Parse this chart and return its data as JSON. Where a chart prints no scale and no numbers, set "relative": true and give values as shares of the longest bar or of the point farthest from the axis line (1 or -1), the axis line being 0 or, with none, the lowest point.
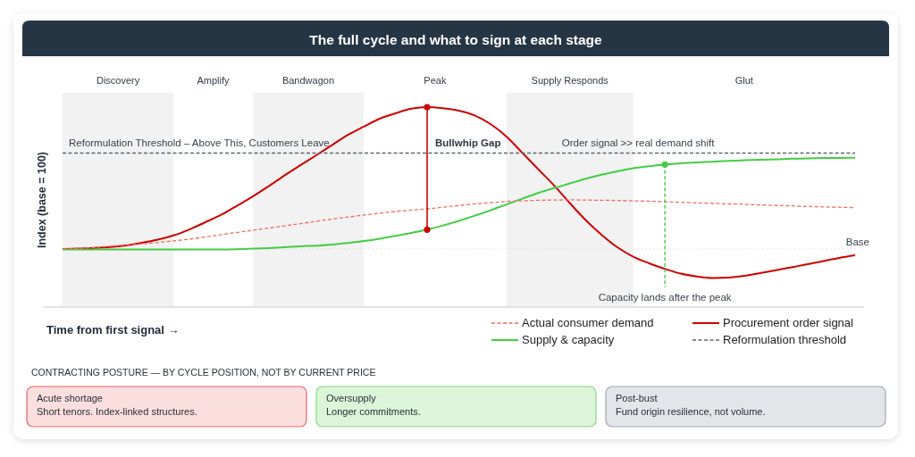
{
  "chart_data": [
    {
      "type": "line",
      "title": "The full cycle and what to sign at each stage",
      "xlabel": "Time from first signal →",
      "ylabel": "Index (base = 100)",
      "relative": true,
      "legend": "bottom right",
      "categories": [
        null,
        null,
        null,
        null,
        null,
        null,
        null,
        null,
        null,
        null,
        null,
        null,
        null,
        null,
        null,
        null,
        null,
        null,
        null,
        null,
        null,
        null,
        null,
        null,
        null,
        null,
        null,
        null,
        null,
        null,
        null,
        null,
        null,
        null,
        null,
        null,
        null,
        null,
        null,
        null,
        null,
        null,
        null,
        null,
        null,
        null,
        null,
        null,
        null,
        null,
        null
      ],
      "series": [
        {
          "name": "Actual consumer demand",
          "color": "#f26b5b",
          "line_style": "dashed",
          "values": [
            0.29,
            0.293,
            0.298,
            0.304,
            0.31,
            0.316,
            0.323,
            0.331,
            0.34,
            0.35,
            0.362,
            0.373,
            0.384,
            0.395,
            0.406,
            0.417,
            0.429,
            0.44,
            0.45,
            0.46,
            0.469,
            0.478,
            0.485,
            0.491,
            0.499,
            0.508,
            0.516,
            0.522,
            0.528,
            0.531,
            0.534,
            0.535,
            0.536,
            0.535,
            0.534,
            0.533,
            0.531,
            0.529,
            0.527,
            0.524,
            0.521,
            0.519,
            0.516,
            0.514,
            0.511,
            0.508,
            0.506,
            0.503,
            0.501,
            0.499,
            0.497
          ]
        },
        {
          "name": "Procurement order signal",
          "color": "#cc0000",
          "line_style": "solid",
          "values": [
            0.29,
            0.292,
            0.296,
            0.3,
            0.308,
            0.321,
            0.337,
            0.358,
            0.388,
            0.424,
            0.461,
            0.506,
            0.553,
            0.604,
            0.658,
            0.709,
            0.759,
            0.81,
            0.861,
            0.902,
            0.942,
            0.969,
            0.992,
            1.0,
            0.994,
            0.982,
            0.958,
            0.915,
            0.853,
            0.772,
            0.69,
            0.609,
            0.52,
            0.435,
            0.362,
            0.299,
            0.252,
            0.219,
            0.191,
            0.167,
            0.153,
            0.145,
            0.147,
            0.156,
            0.17,
            0.184,
            0.199,
            0.214,
            0.23,
            0.246,
            0.259
          ]
        },
        {
          "name": "Supply & capacity",
          "color": "#44cc44",
          "line_style": "solid",
          "values": [
            0.288,
            0.288,
            0.288,
            0.288,
            0.288,
            0.288,
            0.288,
            0.288,
            0.288,
            0.288,
            0.288,
            0.289,
            0.292,
            0.295,
            0.299,
            0.304,
            0.307,
            0.313,
            0.32,
            0.33,
            0.342,
            0.356,
            0.371,
            0.387,
            0.408,
            0.431,
            0.457,
            0.484,
            0.513,
            0.542,
            0.57,
            0.595,
            0.618,
            0.642,
            0.662,
            0.679,
            0.694,
            0.704,
            0.713,
            0.719,
            0.723,
            0.727,
            0.731,
            0.734,
            0.737,
            0.739,
            0.742,
            0.743,
            0.745,
            0.746,
            0.747
          ]
        },
        {
          "name": "Reformulation threshold",
          "color": "#5f6673",
          "line_style": "dashed",
          "values": [
            0.77,
            0.77,
            0.77,
            0.77,
            0.77,
            0.77,
            0.77,
            0.77,
            0.77,
            0.77,
            0.77,
            0.77,
            0.77,
            0.77,
            0.77,
            0.77,
            0.77,
            0.77,
            0.77,
            0.77,
            0.77,
            0.77,
            0.77,
            0.77,
            0.77,
            0.77,
            0.77,
            0.77,
            0.77,
            0.77,
            0.77,
            0.77,
            0.77,
            0.77,
            0.77,
            0.77,
            0.77,
            0.77,
            0.77,
            0.77,
            0.77,
            0.77,
            0.77,
            0.77,
            0.77,
            0.77,
            0.77,
            0.77,
            0.77,
            0.77,
            0.77
          ]
        }
      ],
      "ref_lines": [
        {
          "axis": "y",
          "value": 0.29,
          "label": "Base",
          "color": "#dcdcdc",
          "line_style": "dotted"
        }
      ],
      "annotations": [
        "Discovery",
        "Amplify",
        "Bandwagon",
        "Peak",
        "Supply Responds",
        "Glut",
        {
          "text": "Reformulation Threshold – Above This, Customers Leave",
          "y": 0.77
        },
        "Bullwhip Gap",
        {
          "text": "Order signal >> real demand shift",
          "y": 0.77
        },
        "Capacity lands after the peak"
      ]
    },
    {
      "type": "other",
      "title": "CONTRACTING POSTURE — BY CYCLE POSITION, NOT BY CURRENT PRICE",
      "annotations": [
        "Acute shortage",
        "Short tenors. Index-linked structures.",
        "Oversupply",
        "Longer commitments.",
        "Post-bust",
        "Fund origin resilience, not volume."
      ]
    }
  ]
}
